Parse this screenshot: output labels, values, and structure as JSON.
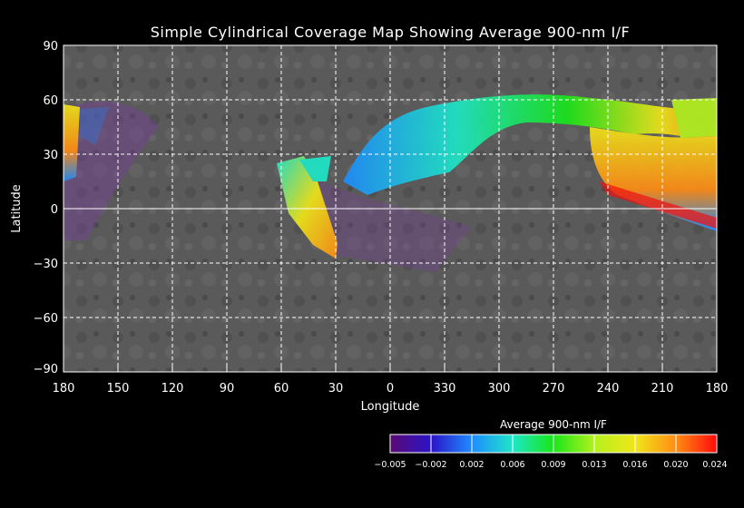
{
  "title": "Simple Cylindrical Coverage Map Showing Average 900-nm I/F",
  "xlabel": "Longitude",
  "ylabel": "Latitude",
  "x_ticks": [
    "180",
    "150",
    "120",
    "90",
    "60",
    "30",
    "0",
    "330",
    "300",
    "270",
    "240",
    "210",
    "180"
  ],
  "y_ticks": [
    "90",
    "60",
    "30",
    "0",
    "−30",
    "−60",
    "−90"
  ],
  "colorbar": {
    "label": "Average 900-nm I/F",
    "ticks": [
      "−0.005",
      "−0.002",
      "0.002",
      "0.006",
      "0.009",
      "0.013",
      "0.016",
      "0.020",
      "0.024"
    ],
    "colors": [
      "#5a0a72",
      "#2a14c8",
      "#1e8cff",
      "#1ee6c8",
      "#19e619",
      "#b4f01e",
      "#f0e619",
      "#ff8c14",
      "#ff0a0a"
    ]
  },
  "map": {
    "projection": "Simple Cylindrical",
    "longitude_range": [
      180,
      -180
    ],
    "latitude_range": [
      -90,
      90
    ],
    "gridlines": true,
    "base_color": "#5a5a5a",
    "grid_color": "#ffffff"
  }
}
